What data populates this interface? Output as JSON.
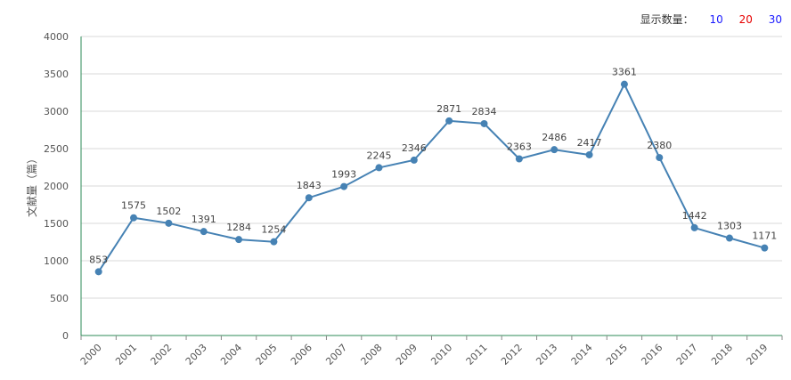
{
  "controls": {
    "count_label": "显示数量：",
    "options": [
      {
        "label": "10",
        "color": "#1a1aff"
      },
      {
        "label": "20",
        "color": "#e60000"
      },
      {
        "label": "30",
        "color": "#1a1aff"
      }
    ]
  },
  "chart_data": {
    "type": "line",
    "ylabel": "文献量（篇）",
    "xlabel": "",
    "ylim": [
      0,
      4000
    ],
    "yticks": [
      0,
      500,
      1000,
      1500,
      2000,
      2500,
      3000,
      3500,
      4000
    ],
    "grid": true,
    "categories": [
      "2000",
      "2001",
      "2002",
      "2003",
      "2004",
      "2005",
      "2006",
      "2007",
      "2008",
      "2009",
      "2010",
      "2011",
      "2012",
      "2013",
      "2014",
      "2015",
      "2016",
      "2017",
      "2018",
      "2019"
    ],
    "values": [
      853,
      1575,
      1502,
      1391,
      1284,
      1254,
      1843,
      1993,
      2245,
      2346,
      2871,
      2834,
      2363,
      2486,
      2417,
      3361,
      2380,
      1442,
      1303,
      1171
    ],
    "colors": {
      "line": "#4682b4",
      "axis": "#2e8b57",
      "grid": "#d9d9d9"
    }
  }
}
